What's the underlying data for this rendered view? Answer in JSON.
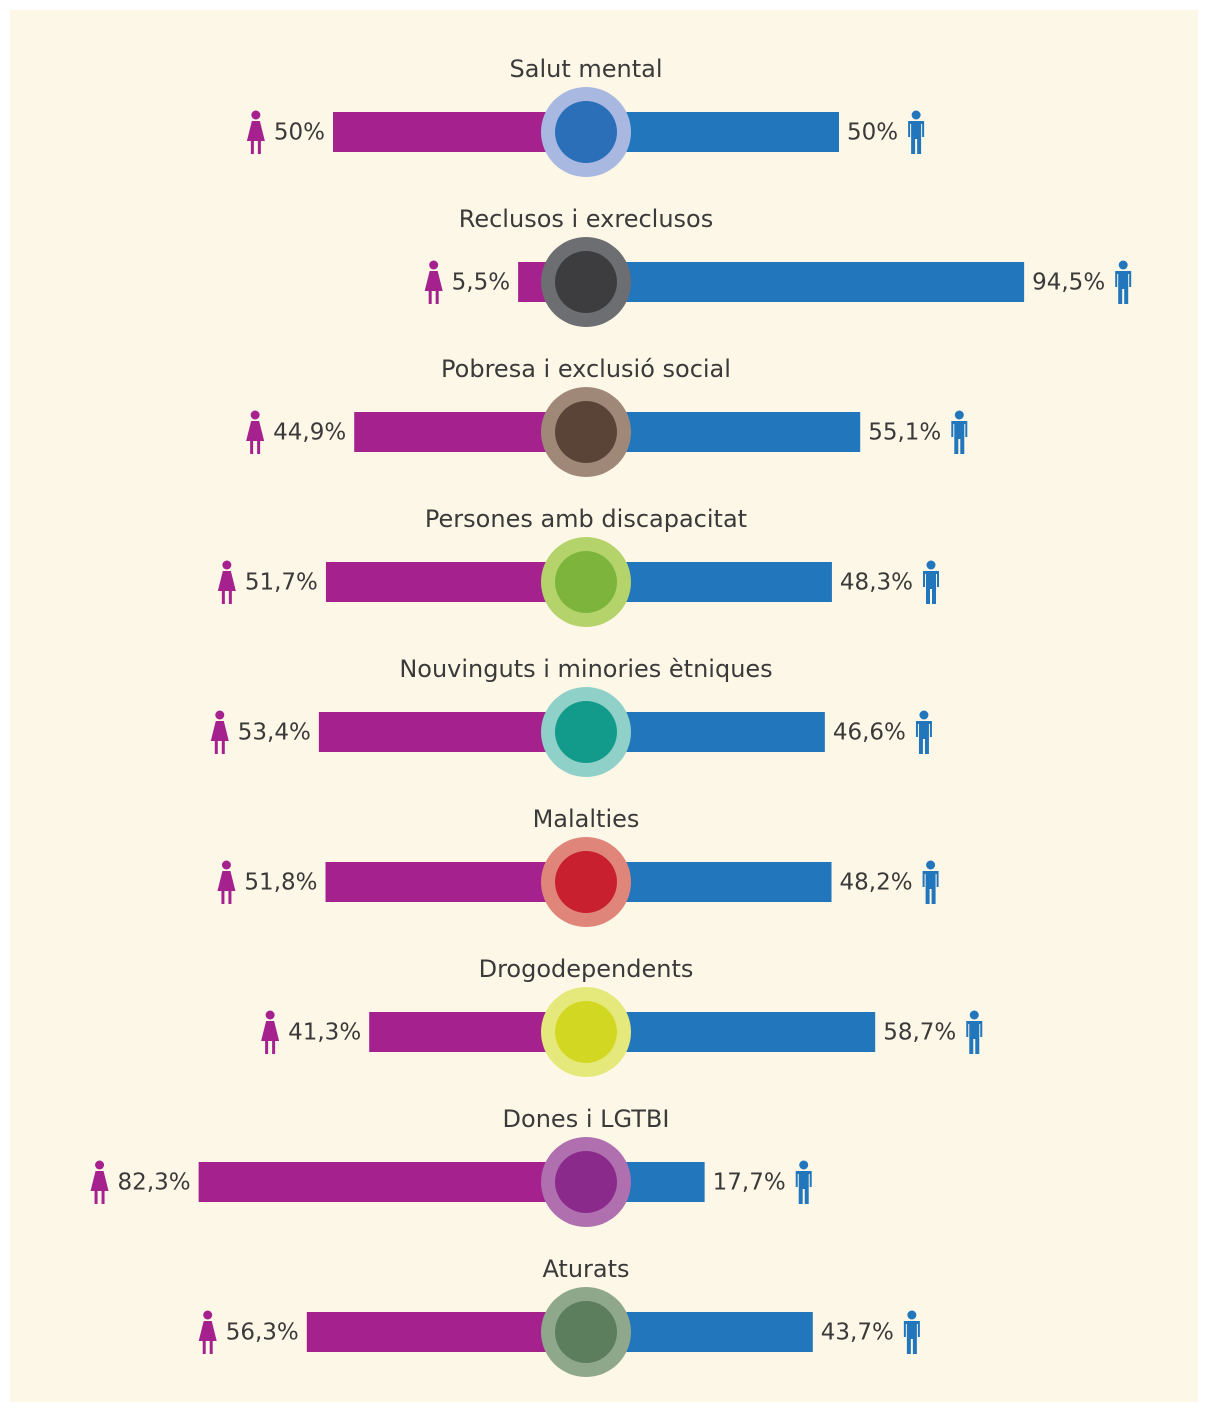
{
  "chart_data": {
    "type": "butterfly",
    "categories": [
      "Salut mental",
      "Reclusos i exreclusos",
      "Pobresa i exclusió social",
      "Persones amb discapacitat",
      "Nouvinguts i minories ètniques",
      "Malalties",
      "Drogodependents",
      "Dones i LGTBI",
      "Aturats"
    ],
    "series": [
      {
        "color": "#a4218e",
        "values": [
          50,
          5.5,
          44.9,
          51.7,
          53.4,
          51.8,
          41.3,
          82.3,
          56.3
        ],
        "value_labels": [
          "50%",
          "5,5%",
          "44,9%",
          "51,7%",
          "53,4%",
          "51,8%",
          "41,3%",
          "82,3%",
          "56,3%"
        ]
      },
      {
        "color": "#2276bc",
        "values": [
          50,
          94.5,
          55.1,
          48.3,
          46.6,
          48.2,
          58.7,
          17.7,
          43.7
        ],
        "value_labels": [
          "50%",
          "94,5%",
          "55,1%",
          "48,3%",
          "46,6%",
          "48,2%",
          "58,7%",
          "17,7%",
          "43,7%"
        ]
      }
    ]
  }
}
